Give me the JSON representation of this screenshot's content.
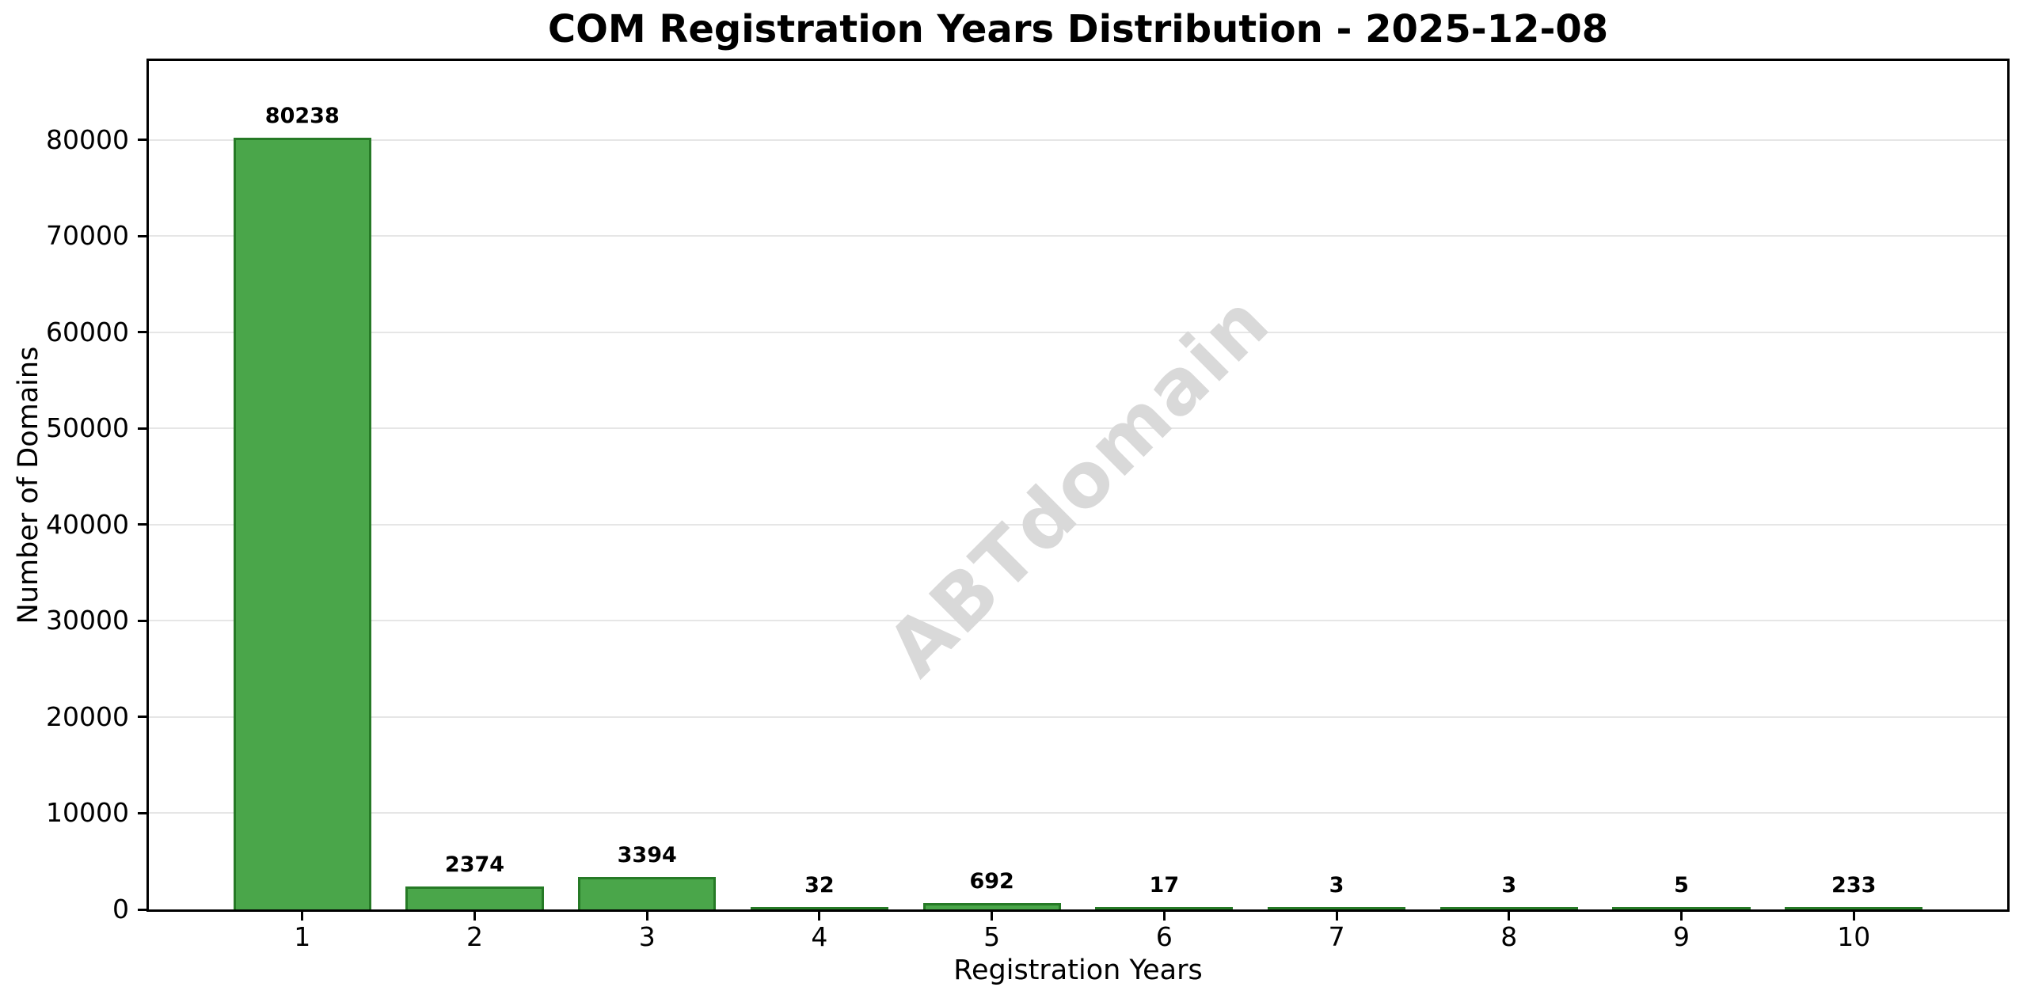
{
  "chart_data": {
    "type": "bar",
    "title": "COM Registration Years Distribution - 2025-12-08",
    "xlabel": "Registration Years",
    "ylabel": "Number of Domains",
    "watermark": "ABTdomain",
    "categories": [
      "1",
      "2",
      "3",
      "4",
      "5",
      "6",
      "7",
      "8",
      "9",
      "10"
    ],
    "values": [
      80238,
      2374,
      3394,
      32,
      692,
      17,
      3,
      3,
      5,
      233
    ],
    "yticks": [
      0,
      10000,
      20000,
      30000,
      40000,
      50000,
      60000,
      70000,
      80000
    ],
    "ylim": [
      0,
      88200
    ],
    "xlim": [
      0.11,
      10.89
    ],
    "bar_width": 0.8,
    "grid": "horizontal",
    "legend": "none",
    "colors": {
      "bar_fill": "#4aa64a",
      "bar_edge": "#267a26",
      "grid": "#e6e6e6",
      "spine": "#000000",
      "text": "#000000",
      "watermark": "#d9d9d9",
      "background": "#ffffff"
    }
  }
}
